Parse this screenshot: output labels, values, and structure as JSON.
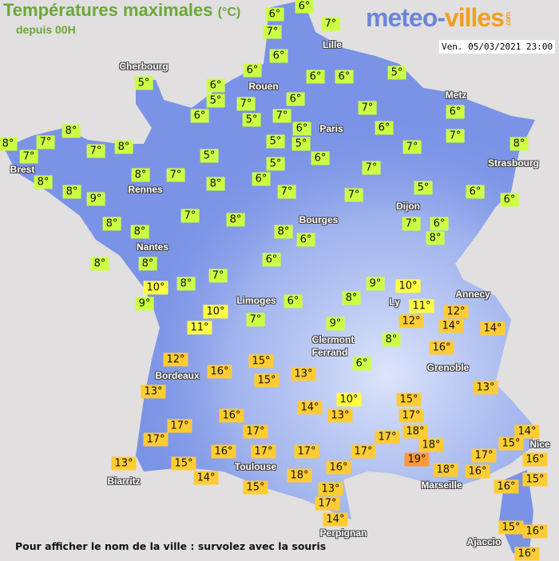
{
  "header": {
    "title": "Températures maximales",
    "unit": "(°C)",
    "subtitle": "depuis 00H"
  },
  "logo": {
    "part1": "meteo-",
    "part2": "villes",
    "suffix": ".com"
  },
  "datetime": "Ven. 05/03/2021 23:00",
  "footer": "Pour afficher le nom de la ville : survolez avec la souris",
  "colors": {
    "sea": "#e1dfdf",
    "land": "#7a93e6",
    "cold": "#ccff44",
    "mild": "#ffff44",
    "warm": "#ffcc33",
    "hot": "#ff9933"
  },
  "cities": [
    {
      "name": "Cherbourg"
    },
    {
      "name": "Rouen"
    },
    {
      "name": "Lille"
    },
    {
      "name": "Paris"
    },
    {
      "name": "Metz"
    },
    {
      "name": "Strasbourg"
    },
    {
      "name": "Brest"
    },
    {
      "name": "Rennes"
    },
    {
      "name": "Nantes"
    },
    {
      "name": "Bourges"
    },
    {
      "name": "Dijon"
    },
    {
      "name": "Limoges"
    },
    {
      "name": "Ly"
    },
    {
      "name": "Annecy"
    },
    {
      "name": "Clermont"
    },
    {
      "name": "Ferrand"
    },
    {
      "name": "Grenoble"
    },
    {
      "name": "Bordeaux"
    },
    {
      "name": "Toulouse"
    },
    {
      "name": "Biarritz"
    },
    {
      "name": "Marseille"
    },
    {
      "name": "Nice"
    },
    {
      "name": "Perpignan"
    },
    {
      "name": "Ajaccio"
    }
  ],
  "temperatures": [
    "6°",
    "6°",
    "7°",
    "7°",
    "6°",
    "5°",
    "6°",
    "5°",
    "6°",
    "7°",
    "5°",
    "6°",
    "6°",
    "6°",
    "5°",
    "6°",
    "7°",
    "6°",
    "6°",
    "7°",
    "6°",
    "6°",
    "7°",
    "7°",
    "8°",
    "5°",
    "5°",
    "5°",
    "5°",
    "7°",
    "7°",
    "6°",
    "8°",
    "7°",
    "8°",
    "8°",
    "7°",
    "7°",
    "8°",
    "7°",
    "8°",
    "8°",
    "8°",
    "9°",
    "8°",
    "8°",
    "7°",
    "8°",
    "7°",
    "5°",
    "6°",
    "6°",
    "7°",
    "6°",
    "8°",
    "8°",
    "6°",
    "6°",
    "8°",
    "8°",
    "7°",
    "8°",
    "10°",
    "9°",
    "9°",
    "10°",
    "8°",
    "6°",
    "7°",
    "10°",
    "11°",
    "9°",
    "11°",
    "12°",
    "12°",
    "14°",
    "14°",
    "8°",
    "16°",
    "6°",
    "12°",
    "16°",
    "15°",
    "15°",
    "13°",
    "13°",
    "13°",
    "10°",
    "14°",
    "13°",
    "15°",
    "16°",
    "17°",
    "17°",
    "17°",
    "17°",
    "18°",
    "17°",
    "18°",
    "14°",
    "15°",
    "16°",
    "17°",
    "17°",
    "17°",
    "19°",
    "18°",
    "17°",
    "16°",
    "13°",
    "15°",
    "14°",
    "18°",
    "16°",
    "16°",
    "16°",
    "15°",
    "15°",
    "13°",
    "17°",
    "14°",
    "15°",
    "16°",
    "16°"
  ]
}
